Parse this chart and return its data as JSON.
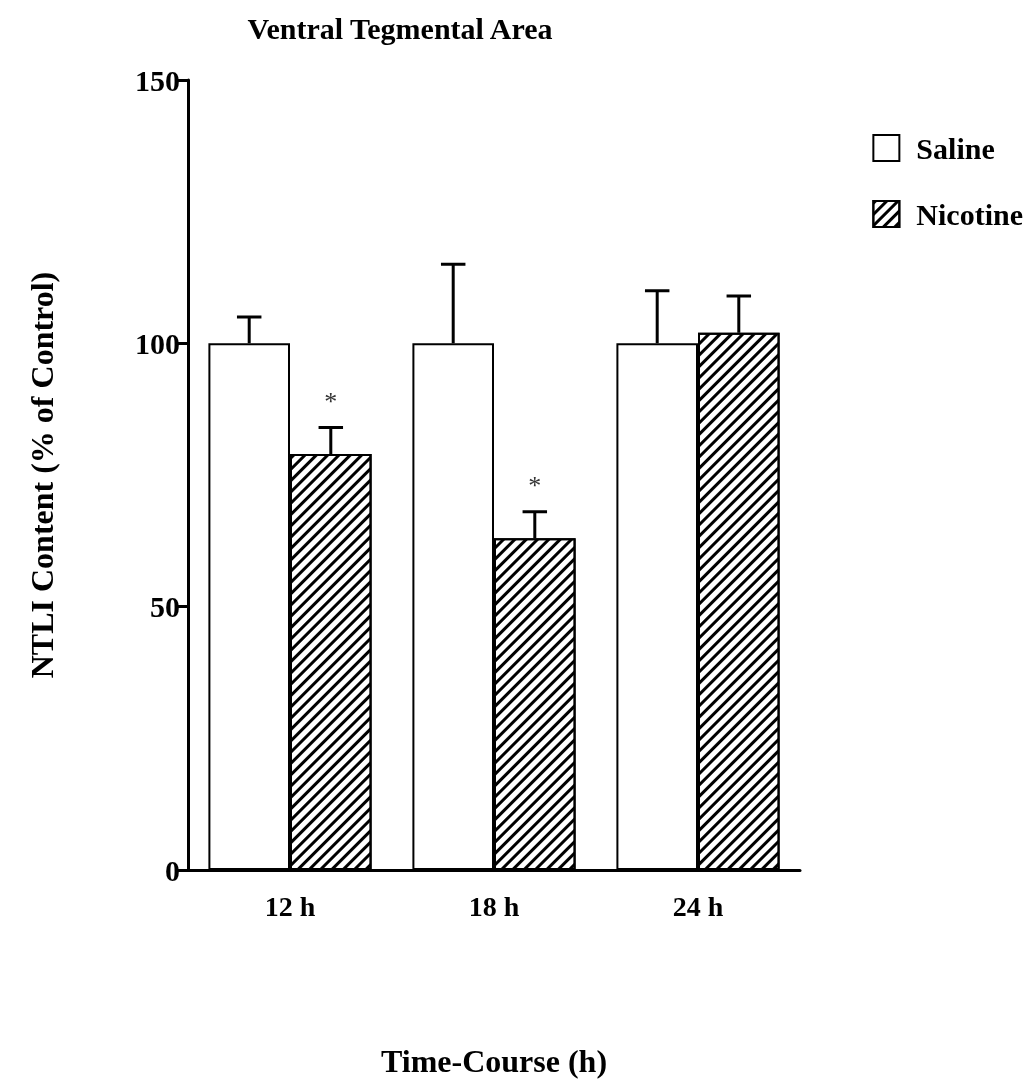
{
  "chart_data": {
    "type": "bar",
    "title": "Ventral Tegmental Area",
    "xlabel": "Time-Course (h)",
    "ylabel": "NTLI Content (% of Control)",
    "categories": [
      "12 h",
      "18 h",
      "24 h"
    ],
    "series": [
      {
        "name": "Saline",
        "color": "#ffffff",
        "values": [
          100,
          100,
          100
        ],
        "errors": [
          [
            100,
            105
          ],
          [
            100,
            115
          ],
          [
            100,
            110
          ]
        ]
      },
      {
        "name": "Nicotine",
        "color": "#000000",
        "values": [
          79,
          63,
          102
        ],
        "errors": [
          [
            79,
            84
          ],
          [
            63,
            68
          ],
          [
            102,
            109
          ]
        ]
      }
    ],
    "ylim": [
      0,
      150
    ],
    "yticks": [
      0,
      50,
      100,
      150
    ],
    "grid": false,
    "legend": "top right",
    "annotations": [
      {
        "text": "*",
        "x": "12 h",
        "y": 89
      },
      {
        "text": "*",
        "x": "18 h",
        "y": 73
      }
    ]
  }
}
